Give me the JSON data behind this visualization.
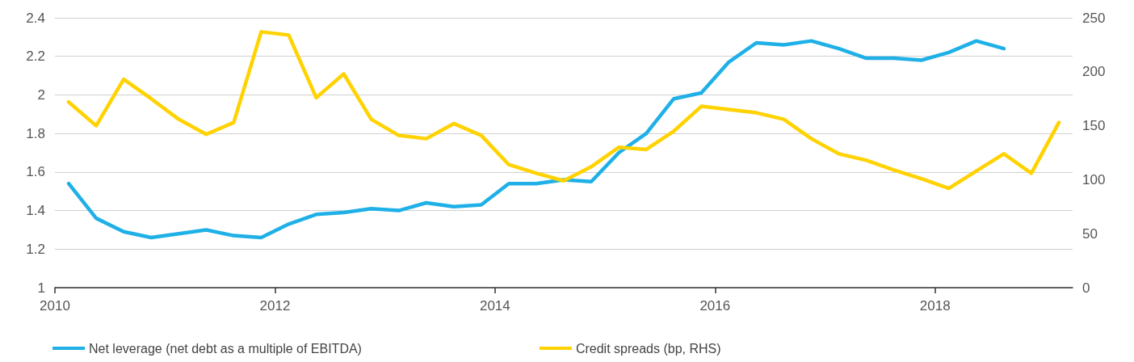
{
  "chart_data": {
    "type": "line",
    "x": [
      2010.125,
      2010.375,
      2010.625,
      2010.875,
      2011.125,
      2011.375,
      2011.625,
      2011.875,
      2012.125,
      2012.375,
      2012.625,
      2012.875,
      2013.125,
      2013.375,
      2013.625,
      2013.875,
      2014.125,
      2014.375,
      2014.625,
      2014.875,
      2015.125,
      2015.375,
      2015.625,
      2015.875,
      2016.125,
      2016.375,
      2016.625,
      2016.875,
      2017.125,
      2017.375,
      2017.625,
      2017.875,
      2018.125,
      2018.375,
      2018.625,
      2018.875,
      2019.125
    ],
    "series": [
      {
        "name": "Net leverage (net debt as a multiple of EBITDA)",
        "color": "#1eb0e6",
        "values": [
          1.54,
          1.36,
          1.29,
          1.26,
          1.28,
          1.3,
          1.27,
          1.26,
          1.33,
          1.38,
          1.39,
          1.41,
          1.4,
          1.44,
          1.42,
          1.43,
          1.54,
          1.54,
          1.56,
          1.55,
          1.7,
          1.8,
          1.98,
          2.01,
          2.17,
          2.27,
          2.26,
          2.28,
          2.24,
          2.19,
          2.19,
          2.18,
          2.22,
          2.28,
          2.24,
          null,
          null
        ]
      },
      {
        "name": "Credit spreads (bp, RHS)",
        "color": "#ffd200",
        "axis": "y2",
        "values": [
          172,
          150,
          193,
          175,
          156,
          142,
          153,
          237,
          234,
          176,
          198,
          156,
          141,
          138,
          152,
          141,
          114,
          106,
          99,
          112,
          130,
          128,
          145,
          168,
          165,
          162,
          156,
          138,
          124,
          118,
          109,
          101,
          92,
          108,
          124,
          106,
          153
        ]
      }
    ],
    "xlim": [
      2010,
      2019.25
    ],
    "xticks": [
      2010,
      2012,
      2014,
      2016,
      2018
    ],
    "ylim": [
      1,
      2.4
    ],
    "yticks": [
      1,
      1.2,
      1.4,
      1.6,
      1.8,
      2,
      2.2,
      2.4
    ],
    "y2lim": [
      0,
      250
    ],
    "y2ticks": [
      0,
      50,
      100,
      150,
      200,
      250
    ],
    "grid": "y",
    "legend": "bottom",
    "marker": "none",
    "line_style": "solid"
  }
}
